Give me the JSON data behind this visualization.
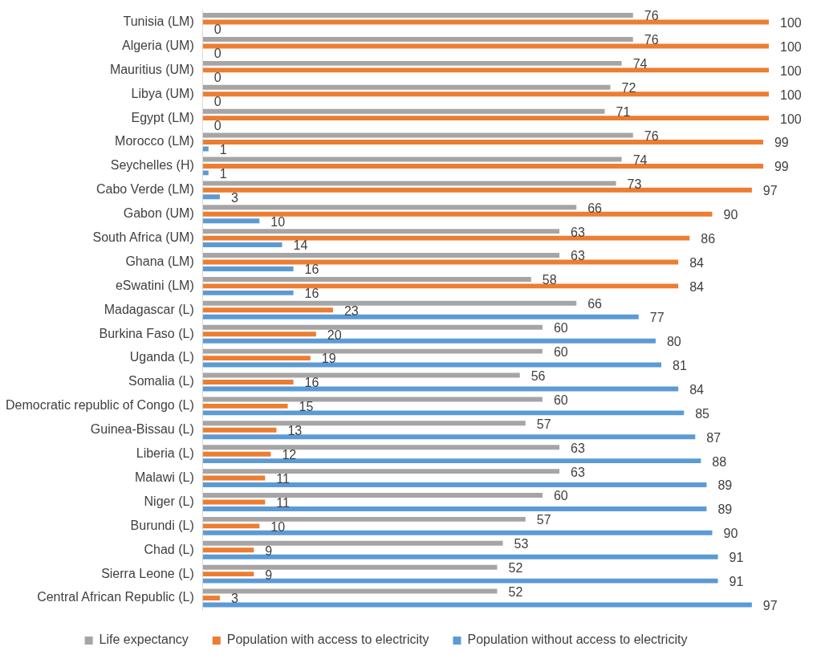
{
  "chart_data": {
    "type": "bar",
    "orientation": "horizontal",
    "categories": [
      "Tunisia (LM)",
      "Algeria (UM)",
      "Mauritius (UM)",
      "Libya (UM)",
      "Egypt (LM)",
      "Morocco (LM)",
      "Seychelles (H)",
      "Cabo Verde (LM)",
      "Gabon (UM)",
      "South Africa (UM)",
      "Ghana (LM)",
      "eSwatini (LM)",
      "Madagascar (L)",
      "Burkina Faso (L)",
      "Uganda (L)",
      "Somalia (L)",
      "Democratic republic of Congo (L)",
      "Guinea-Bissau (L)",
      "Liberia (L)",
      "Malawi (L)",
      "Niger (L)",
      "Burundi (L)",
      "Chad (L)",
      "Sierra Leone (L)",
      "Central African Republic (L)"
    ],
    "series": [
      {
        "name": "Life expectancy",
        "color": "#a5a5a5",
        "values": [
          76,
          76,
          74,
          72,
          71,
          76,
          74,
          73,
          66,
          63,
          63,
          58,
          66,
          60,
          60,
          56,
          60,
          57,
          63,
          63,
          60,
          57,
          53,
          52,
          52
        ]
      },
      {
        "name": "Population with access to electricity",
        "color": "#ed7d31",
        "values": [
          100,
          100,
          100,
          100,
          100,
          99,
          99,
          97,
          90,
          86,
          84,
          84,
          23,
          20,
          19,
          16,
          15,
          13,
          12,
          11,
          11,
          10,
          9,
          9,
          3
        ]
      },
      {
        "name": "Population without access to electricity",
        "color": "#5b9bd5",
        "values": [
          0,
          0,
          0,
          0,
          0,
          1,
          1,
          3,
          10,
          14,
          16,
          16,
          77,
          80,
          81,
          84,
          85,
          87,
          88,
          89,
          89,
          90,
          91,
          91,
          97
        ]
      }
    ],
    "data_labels": true,
    "grid": false,
    "legend": "bottom",
    "tick_labels": "y"
  }
}
